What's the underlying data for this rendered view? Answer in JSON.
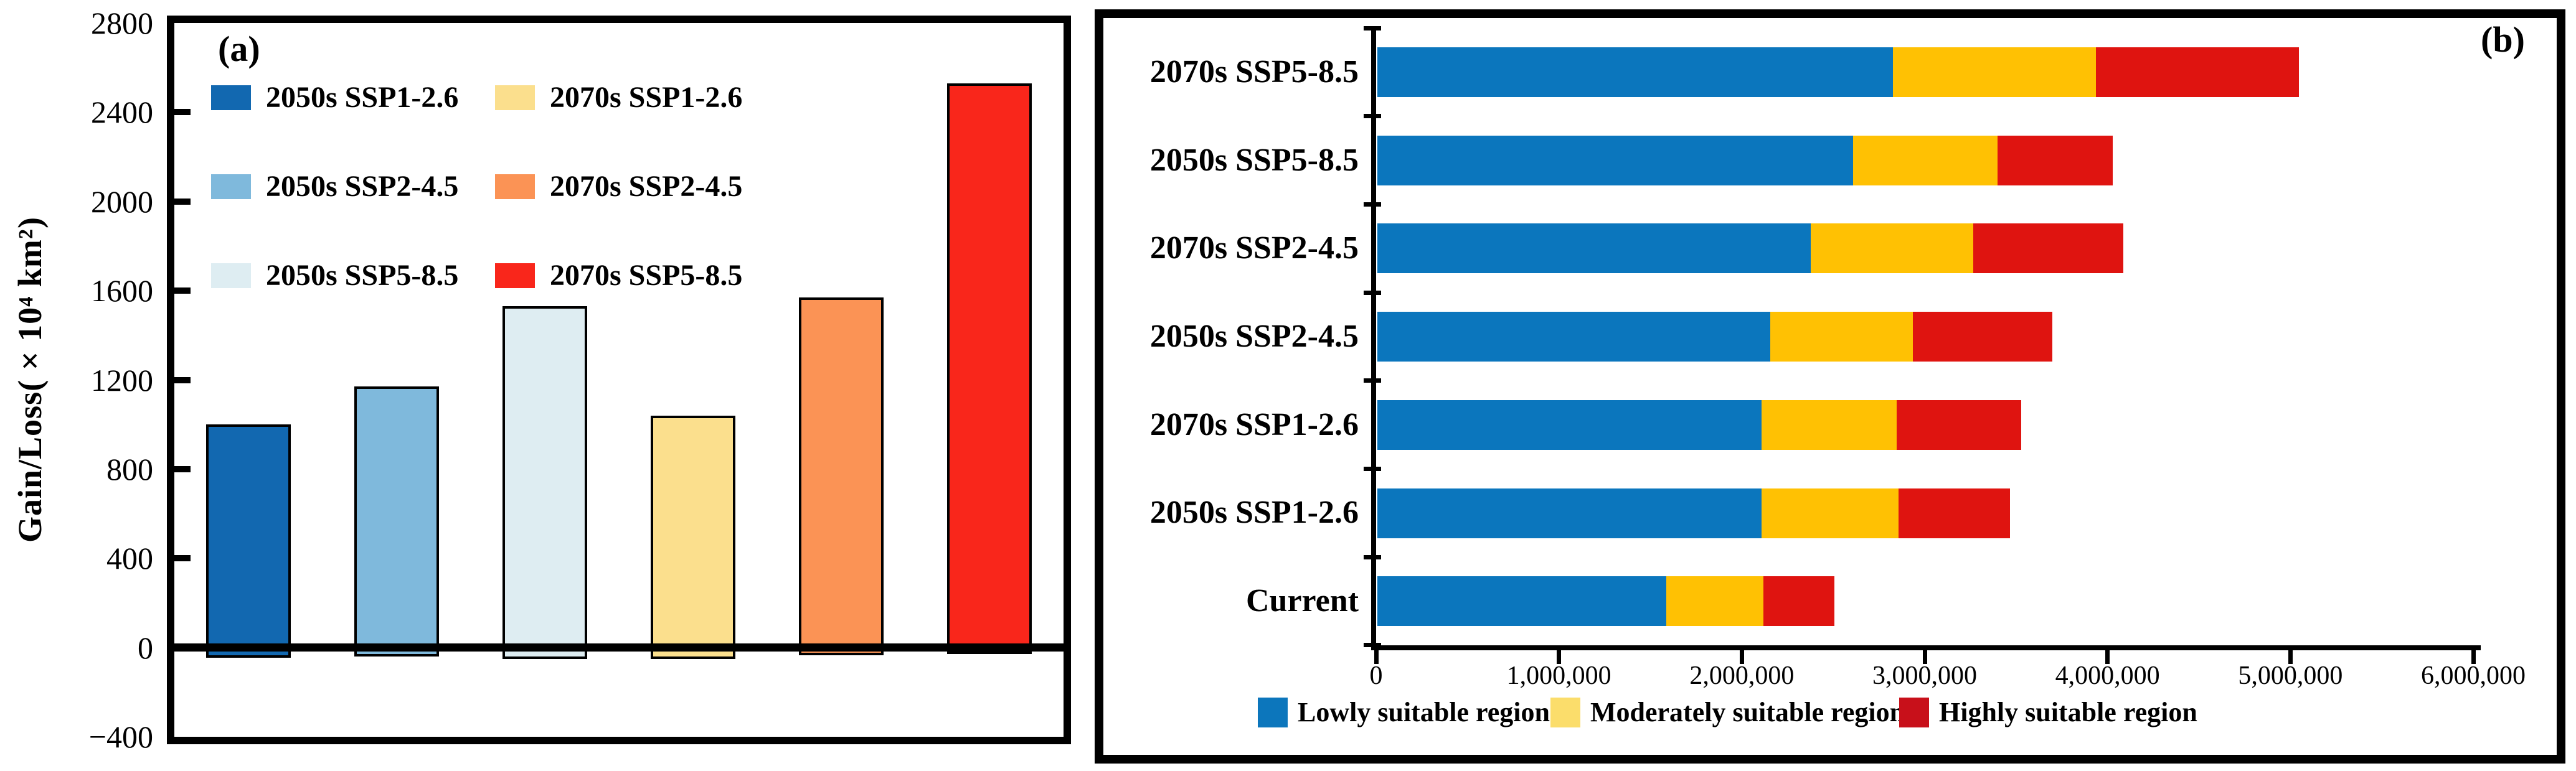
{
  "figure": {
    "background": "#FFFFFF",
    "panel_a_label": "(a)",
    "panel_b_label": "(b)"
  },
  "chart_data": [
    {
      "type": "bar",
      "panel": "a",
      "title": "",
      "xlabel": "",
      "ylabel": "Gain/Loss(×10⁴ km²)",
      "ylim": [
        -400,
        2800
      ],
      "grid": false,
      "legend_position": "upper-left, two columns",
      "yticks": [
        {
          "value": 2800,
          "label": "2800"
        },
        {
          "value": 2400,
          "label": "2400"
        },
        {
          "value": 2000,
          "label": "2000"
        },
        {
          "value": 1600,
          "label": "1600"
        },
        {
          "value": 1200,
          "label": "1200"
        },
        {
          "value": 800,
          "label": "800"
        },
        {
          "value": 400,
          "label": "400"
        },
        {
          "value": 0,
          "label": "0"
        },
        {
          "value": -400,
          "label": "−400"
        }
      ],
      "bars": [
        {
          "label": "2050s SSP1-2.6",
          "gain": 1000,
          "loss": -45,
          "color": "#1268B0"
        },
        {
          "label": "2050s SSP2-4.5",
          "gain": 1170,
          "loss": -40,
          "color": "#7FB9DC"
        },
        {
          "label": "2050s SSP5-8.5",
          "gain": 1530,
          "loss": -50,
          "color": "#DEEDF2"
        },
        {
          "label": "2070s SSP1-2.6",
          "gain": 1040,
          "loss": -50,
          "color": "#FBDF8D"
        },
        {
          "label": "2070s SSP2-4.5",
          "gain": 1570,
          "loss": -35,
          "color": "#FB9355"
        },
        {
          "label": "2070s SSP5-8.5",
          "gain": 2530,
          "loss": -30,
          "color": "#F9261B"
        }
      ]
    },
    {
      "type": "bar-stacked-horizontal",
      "panel": "b",
      "title": "",
      "xlabel": "",
      "ylabel": "",
      "xlim": [
        0,
        6000000
      ],
      "grid": false,
      "legend_position": "bottom",
      "xticks": [
        {
          "value": 0,
          "label": "0"
        },
        {
          "value": 1000000,
          "label": "1,000,000"
        },
        {
          "value": 2000000,
          "label": "2,000,000"
        },
        {
          "value": 3000000,
          "label": "3,000,000"
        },
        {
          "value": 4000000,
          "label": "4,000,000"
        },
        {
          "value": 5000000,
          "label": "5,000,000"
        },
        {
          "value": 6000000,
          "label": "6,000,000"
        }
      ],
      "segments": [
        {
          "name": "Lowly suitable region",
          "color": "#0B76BD",
          "legend_color": "#0C76BC"
        },
        {
          "name": "Moderately suitable region",
          "color": "#FFC103",
          "legend_color": "#FBDD6B"
        },
        {
          "name": "Highly suitable region",
          "color": "#DF1410",
          "legend_color": "#C8101A"
        }
      ],
      "rows": [
        {
          "label": "2070s SSP5-8.5",
          "values": [
            2820000,
            1110000,
            1110000
          ]
        },
        {
          "label": "2050s SSP5-8.5",
          "values": [
            2600000,
            790000,
            630000
          ]
        },
        {
          "label": "2070s SSP2-4.5",
          "values": [
            2370000,
            890000,
            820000
          ]
        },
        {
          "label": "2050s SSP2-4.5",
          "values": [
            2150000,
            780000,
            760000
          ]
        },
        {
          "label": "2070s SSP1-2.6",
          "values": [
            2100000,
            740000,
            680000
          ]
        },
        {
          "label": "2050s SSP1-2.6",
          "values": [
            2100000,
            750000,
            610000
          ]
        },
        {
          "label": "Current",
          "values": [
            1580000,
            530000,
            390000
          ]
        }
      ]
    }
  ]
}
